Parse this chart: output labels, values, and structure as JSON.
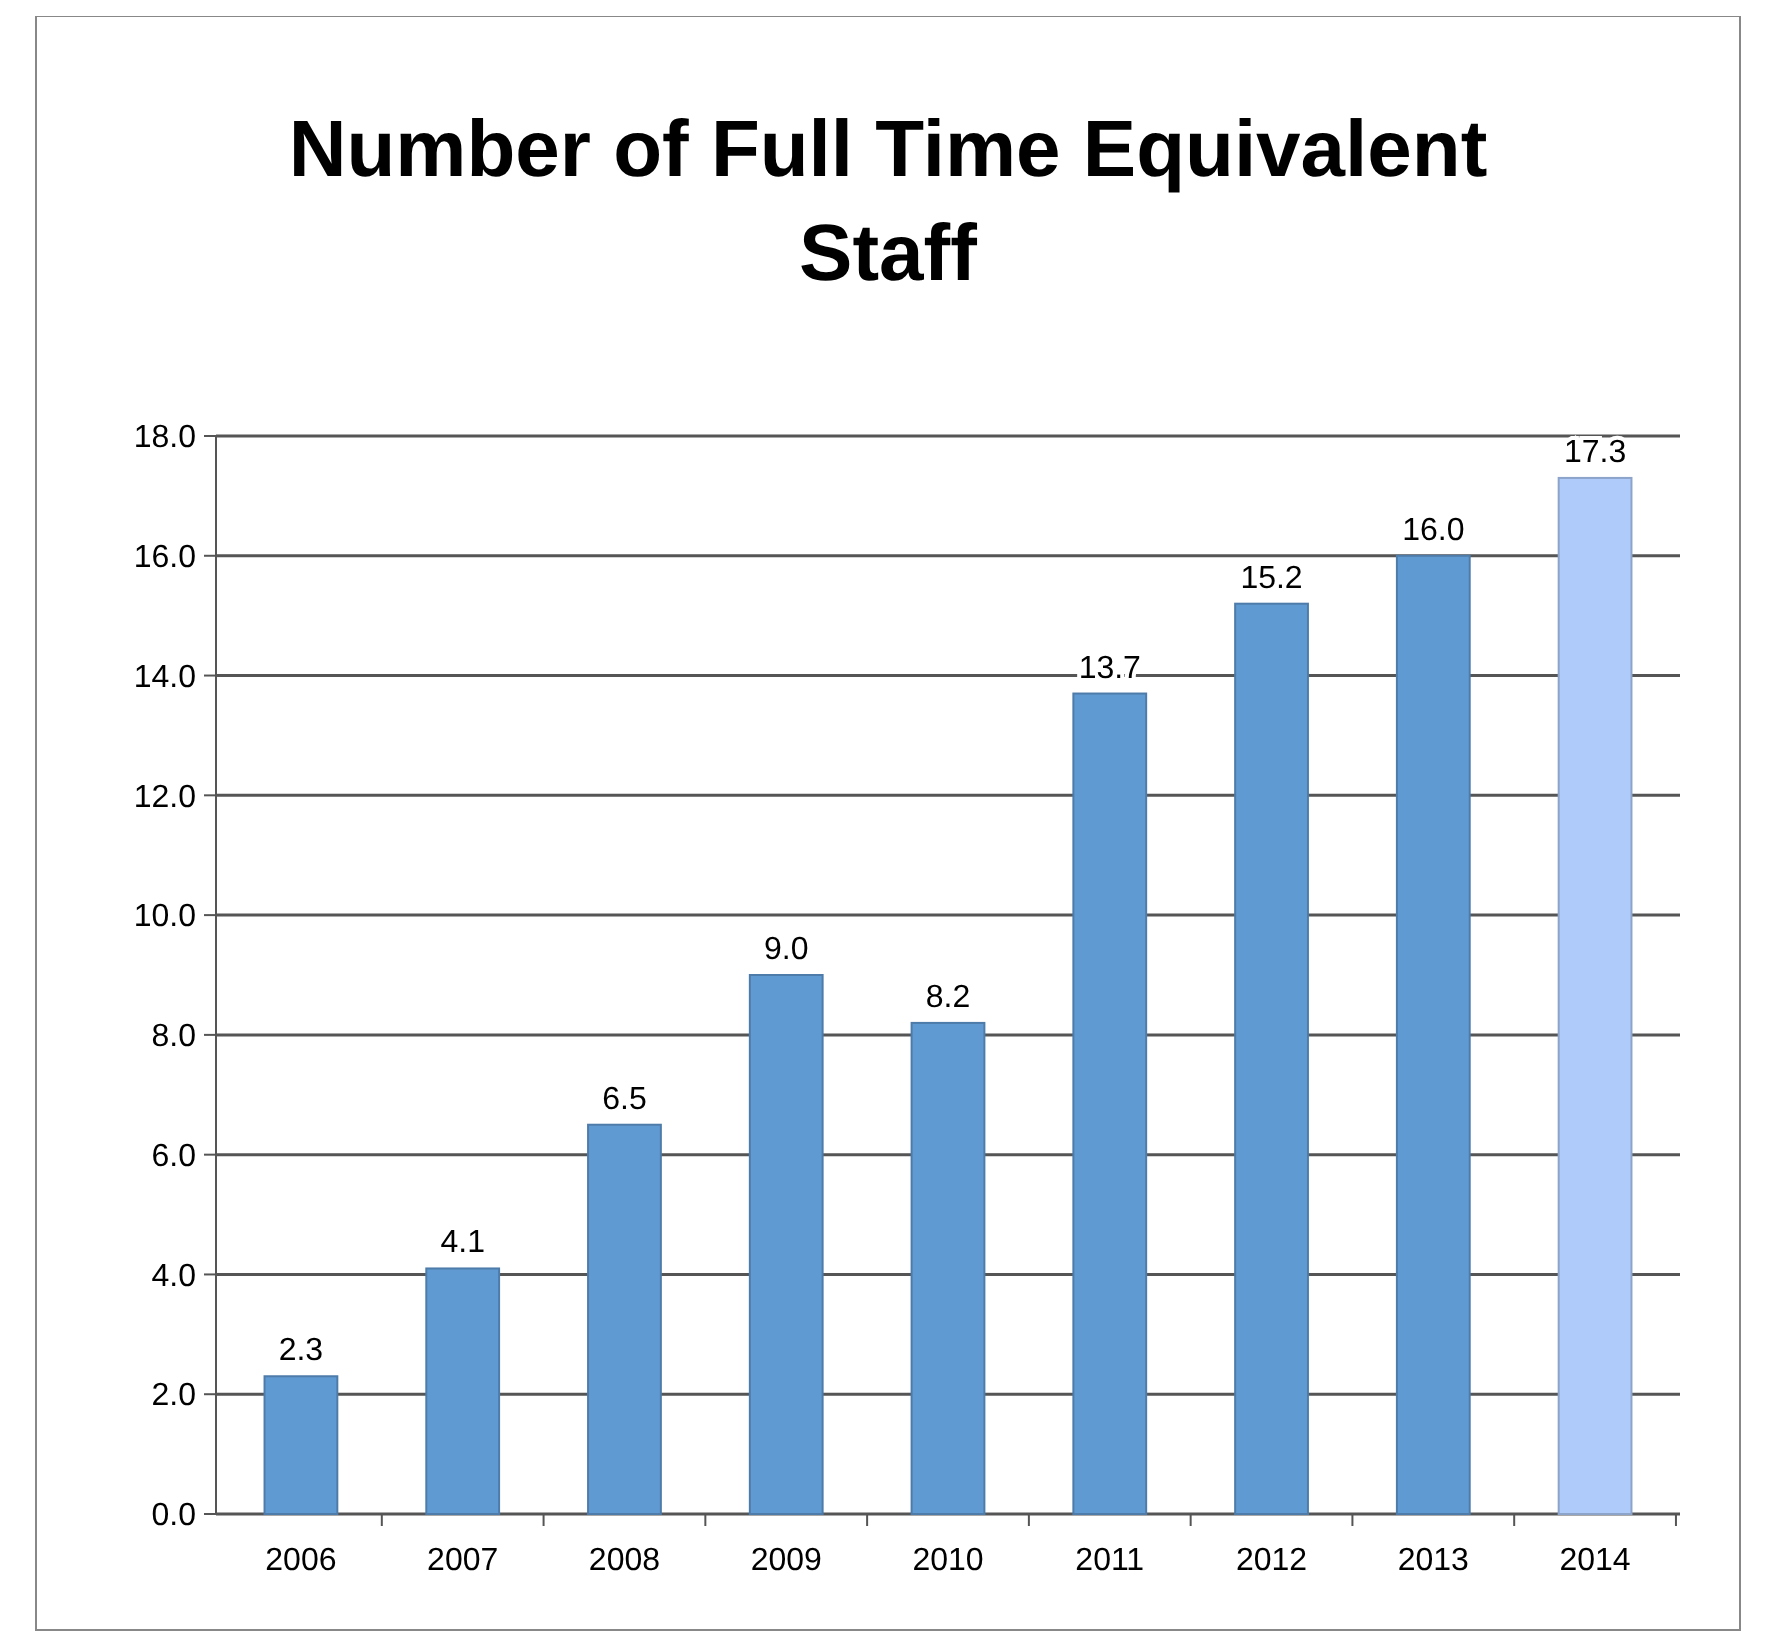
{
  "chart_data": {
    "type": "bar",
    "title": "Number of Full Time Equivalent Staff",
    "categories": [
      "2006",
      "2007",
      "2008",
      "2009",
      "2010",
      "2011",
      "2012",
      "2013",
      "2014"
    ],
    "values": [
      2.3,
      4.1,
      6.5,
      9.0,
      8.2,
      13.7,
      15.2,
      16.0,
      17.3
    ],
    "value_labels": [
      "2.3",
      "4.1",
      "6.5",
      "9.0",
      "8.2",
      "13.7",
      "15.2",
      "16.0",
      "17.3"
    ],
    "colors": [
      "#609ad2",
      "#609ad2",
      "#609ad2",
      "#609ad2",
      "#609ad2",
      "#609ad2",
      "#609ad2",
      "#609ad2",
      "#aecbfa"
    ],
    "ylim": [
      0,
      18
    ],
    "yticks": [
      {
        "value": 0,
        "label": "0.0"
      },
      {
        "value": 2,
        "label": "2.0"
      },
      {
        "value": 4,
        "label": "4.0"
      },
      {
        "value": 6,
        "label": "6.0"
      },
      {
        "value": 8,
        "label": "8.0"
      },
      {
        "value": 10,
        "label": "10.0"
      },
      {
        "value": 12,
        "label": "12.0"
      },
      {
        "value": 14,
        "label": "14.0"
      },
      {
        "value": 16,
        "label": "16.0"
      },
      {
        "value": 18,
        "label": "18.0"
      }
    ],
    "grid": "y"
  }
}
